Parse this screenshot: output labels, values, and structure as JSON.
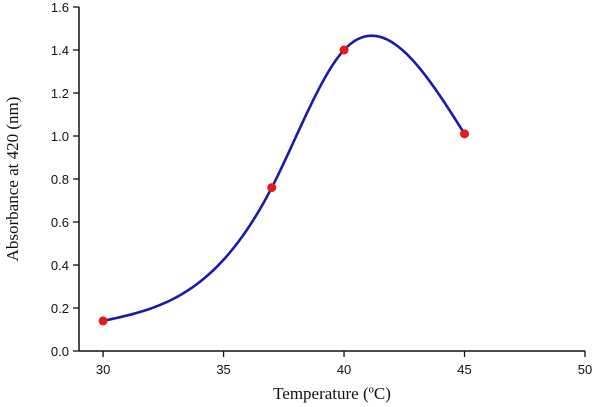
{
  "chart_data": {
    "type": "line",
    "title": "",
    "xlabel": "Temperature (ºC)",
    "ylabel": "Absorbance at 420 (nm)",
    "xlim": [
      29,
      50
    ],
    "ylim": [
      0,
      1.6
    ],
    "x_ticks": [
      30,
      35,
      40,
      45,
      50
    ],
    "x_tick_labels": [
      "30",
      "35",
      "40",
      "45",
      "50"
    ],
    "y_ticks": [
      0,
      0.2,
      0.4,
      0.6,
      0.8,
      1.0,
      1.2,
      1.4,
      1.6
    ],
    "y_tick_labels": [
      "0.0",
      "0.2",
      "0.4",
      "0.6",
      "0.8",
      "1.0",
      "1.2",
      "1.4",
      "1.6"
    ],
    "grid": false,
    "legend": "none",
    "smooth": true,
    "series": [
      {
        "x": [
          30,
          37,
          40,
          45
        ],
        "y": [
          0.14,
          0.76,
          1.4,
          1.01
        ],
        "line_color": "#1a1aaa",
        "marker_color": "#e31a1c"
      }
    ]
  }
}
